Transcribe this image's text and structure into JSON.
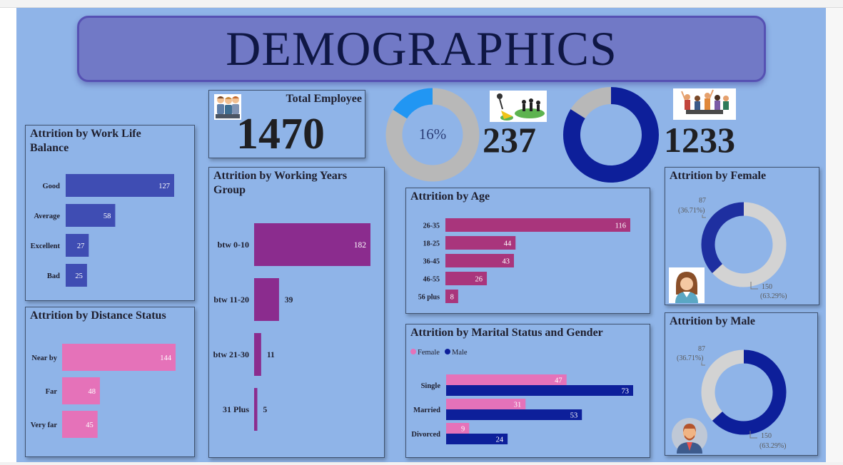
{
  "title": "DEMOGRAPHICS",
  "total": {
    "label": "Total Employee",
    "value": "1470"
  },
  "attrition_donut": {
    "percent_label": "16%",
    "count": "237",
    "percent": 16,
    "colors": [
      "#2196f3",
      "#b8b8b8"
    ]
  },
  "active_donut": {
    "count": "1233",
    "fraction": 0.84,
    "colors": [
      "#0d1f9a",
      "#b8b8b8"
    ]
  },
  "work_life": {
    "title": "Attrition by Work Life Balance",
    "color": "#3f4db3"
  },
  "distance": {
    "title": "Attrition by Distance Status",
    "color": "#e572b9"
  },
  "working_years": {
    "title": "Attrition by Working Years Group",
    "color": "#8b2c8e"
  },
  "age": {
    "title": "Attrition by Age",
    "color": "#a9357c"
  },
  "marital": {
    "title": "Attrition by Marital Status and Gender",
    "legend_female": "Female",
    "legend_male": "Male",
    "female_color": "#e572b9",
    "male_color": "#0d1f9a"
  },
  "female": {
    "title": "Attrition by Female",
    "left_value": "87",
    "left_pct": "(36.71%)",
    "right_value": "150",
    "right_pct": "(63.29%)",
    "accent": "#1e2fa0",
    "rest": "#d3d3d3"
  },
  "male": {
    "title": "Attrition by Male",
    "left_value": "87",
    "left_pct": "(36.71%)",
    "right_value": "150",
    "right_pct": "(63.29%)",
    "accent": "#0d1f9a",
    "rest": "#d3d3d3"
  },
  "chart_data": [
    {
      "type": "bar",
      "title": "Attrition by Work Life Balance",
      "categories": [
        "Good",
        "Average",
        "Excellent",
        "Bad"
      ],
      "values": [
        127,
        58,
        27,
        25
      ]
    },
    {
      "type": "bar",
      "title": "Attrition by Distance Status",
      "categories": [
        "Near by",
        "Far",
        "Very far"
      ],
      "values": [
        144,
        48,
        45
      ]
    },
    {
      "type": "bar",
      "title": "Attrition by Working Years Group",
      "categories": [
        "btw 0-10",
        "btw 11-20",
        "btw 21-30",
        "31 Plus"
      ],
      "values": [
        182,
        39,
        11,
        5
      ]
    },
    {
      "type": "bar",
      "title": "Attrition by Age",
      "categories": [
        "26-35",
        "18-25",
        "36-45",
        "46-55",
        "56 plus"
      ],
      "values": [
        116,
        44,
        43,
        26,
        8
      ]
    },
    {
      "type": "bar",
      "title": "Attrition by Marital Status and Gender",
      "categories": [
        "Single",
        "Married",
        "Divorced"
      ],
      "series": [
        {
          "name": "Female",
          "values": [
            47,
            31,
            9
          ]
        },
        {
          "name": "Male",
          "values": [
            73,
            53,
            24
          ]
        }
      ]
    },
    {
      "type": "pie",
      "title": "Attrition by Female",
      "values": [
        87,
        150
      ]
    },
    {
      "type": "pie",
      "title": "Attrition by Male",
      "values": [
        87,
        150
      ]
    }
  ]
}
